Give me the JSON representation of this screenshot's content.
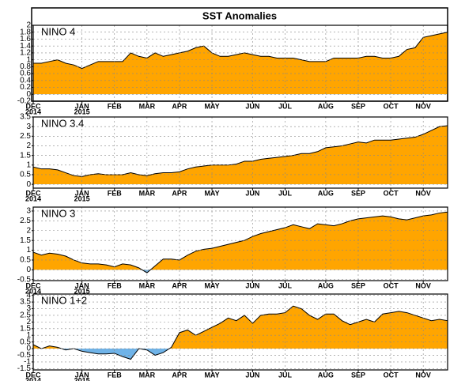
{
  "title": "SST Anomalies",
  "chart_data": [
    {
      "type": "area",
      "title": "NINO 4",
      "color": "#ffa500",
      "negative_color": "#6fb3e8",
      "grid": true,
      "categories": [
        "DEC",
        null,
        null,
        null,
        null,
        null,
        "JAN",
        null,
        null,
        null,
        "FEB",
        null,
        null,
        null,
        "MAR",
        null,
        null,
        null,
        "APR",
        null,
        null,
        null,
        "MAY",
        null,
        null,
        null,
        null,
        "JUN",
        null,
        null,
        null,
        "JUL",
        null,
        null,
        null,
        null,
        "AUG",
        null,
        null,
        null,
        "SEP",
        null,
        null,
        null,
        "OCT",
        null,
        null,
        null,
        "NOV",
        null,
        null,
        null
      ],
      "year_labels": [
        "2014",
        "2015"
      ],
      "values": [
        0.9,
        0.9,
        0.95,
        1.0,
        0.9,
        0.85,
        0.75,
        0.85,
        0.95,
        0.95,
        0.95,
        0.95,
        1.2,
        1.1,
        1.05,
        1.2,
        1.1,
        1.15,
        1.2,
        1.25,
        1.35,
        1.4,
        1.2,
        1.1,
        1.1,
        1.15,
        1.2,
        1.15,
        1.1,
        1.1,
        1.05,
        1.05,
        1.05,
        1.0,
        0.95,
        0.95,
        0.95,
        1.05,
        1.05,
        1.05,
        1.05,
        1.1,
        1.1,
        1.05,
        1.05,
        1.1,
        1.3,
        1.35,
        1.65,
        1.7,
        1.75,
        1.8
      ],
      "ylim": [
        -0.2,
        2
      ],
      "yticks": [
        -0.2,
        0,
        0.2,
        0.4,
        0.6,
        0.8,
        1,
        1.2,
        1.4,
        1.6,
        1.8,
        2
      ]
    },
    {
      "type": "area",
      "title": "NINO 3.4",
      "color": "#ffa500",
      "negative_color": "#6fb3e8",
      "grid": true,
      "categories": [
        "DEC",
        null,
        null,
        null,
        null,
        null,
        "JAN",
        null,
        null,
        null,
        "FEB",
        null,
        null,
        null,
        "MAR",
        null,
        null,
        null,
        "APR",
        null,
        null,
        null,
        "MAY",
        null,
        null,
        null,
        null,
        "JUN",
        null,
        null,
        null,
        "JUL",
        null,
        null,
        null,
        null,
        "AUG",
        null,
        null,
        null,
        "SEP",
        null,
        null,
        null,
        "OCT",
        null,
        null,
        null,
        "NOV",
        null,
        null,
        null
      ],
      "year_labels": [
        "2014",
        "2015"
      ],
      "values": [
        0.9,
        0.8,
        0.8,
        0.75,
        0.6,
        0.45,
        0.4,
        0.5,
        0.55,
        0.5,
        0.5,
        0.5,
        0.6,
        0.5,
        0.45,
        0.55,
        0.6,
        0.6,
        0.65,
        0.8,
        0.9,
        0.95,
        1.0,
        1.0,
        1.0,
        1.05,
        1.2,
        1.2,
        1.3,
        1.35,
        1.4,
        1.45,
        1.5,
        1.6,
        1.6,
        1.7,
        1.9,
        1.95,
        2.0,
        2.1,
        2.2,
        2.15,
        2.3,
        2.3,
        2.3,
        2.35,
        2.4,
        2.45,
        2.6,
        2.8,
        3.0,
        3.05
      ],
      "ylim": [
        -0.2,
        3.5
      ],
      "yticks": [
        0,
        0.5,
        1,
        1.5,
        2,
        2.5,
        3,
        3.5
      ]
    },
    {
      "type": "area",
      "title": "NINO 3",
      "color": "#ffa500",
      "negative_color": "#6fb3e8",
      "grid": true,
      "categories": [
        "DEC",
        null,
        null,
        null,
        null,
        null,
        "JAN",
        null,
        null,
        null,
        "FEB",
        null,
        null,
        null,
        "MAR",
        null,
        null,
        null,
        "APR",
        null,
        null,
        null,
        "MAY",
        null,
        null,
        null,
        null,
        "JUN",
        null,
        null,
        null,
        "JUL",
        null,
        null,
        null,
        null,
        "AUG",
        null,
        null,
        null,
        "SEP",
        null,
        null,
        null,
        "OCT",
        null,
        null,
        null,
        "NOV",
        null,
        null,
        null
      ],
      "year_labels": [
        "2014",
        "2015"
      ],
      "values": [
        0.9,
        0.75,
        0.85,
        0.8,
        0.7,
        0.5,
        0.35,
        0.3,
        0.3,
        0.25,
        0.15,
        0.3,
        0.25,
        0.1,
        -0.15,
        0.2,
        0.55,
        0.55,
        0.5,
        0.75,
        0.95,
        1.05,
        1.1,
        1.2,
        1.3,
        1.4,
        1.5,
        1.7,
        1.85,
        1.95,
        2.05,
        2.15,
        2.3,
        2.2,
        2.1,
        2.35,
        2.3,
        2.25,
        2.35,
        2.5,
        2.6,
        2.65,
        2.7,
        2.75,
        2.7,
        2.6,
        2.55,
        2.65,
        2.75,
        2.8,
        2.9,
        2.95
      ],
      "ylim": [
        -0.55,
        3.2
      ],
      "yticks": [
        -0.5,
        0,
        0.5,
        1,
        1.5,
        2,
        2.5,
        3
      ]
    },
    {
      "type": "area",
      "title": "NINO 1+2",
      "color": "#ffa500",
      "negative_color": "#6fb3e8",
      "grid": true,
      "categories": [
        "DEC",
        null,
        null,
        null,
        null,
        null,
        "JAN",
        null,
        null,
        null,
        "FEB",
        null,
        null,
        null,
        "MAR",
        null,
        null,
        null,
        "APR",
        null,
        null,
        null,
        "MAY",
        null,
        null,
        null,
        null,
        "JUN",
        null,
        null,
        null,
        "JUL",
        null,
        null,
        null,
        null,
        "AUG",
        null,
        null,
        null,
        "SEP",
        null,
        null,
        null,
        "OCT",
        null,
        null,
        null,
        "NOV",
        null,
        null,
        null
      ],
      "year_labels": [
        "2014",
        "2015"
      ],
      "values": [
        0.3,
        0,
        0.2,
        0.1,
        -0.1,
        0,
        -0.2,
        -0.3,
        -0.4,
        -0.4,
        -0.35,
        -0.6,
        -0.8,
        0,
        -0.1,
        -0.5,
        -0.3,
        0.1,
        1.2,
        1.4,
        1.0,
        1.3,
        1.6,
        1.9,
        2.3,
        2.1,
        2.5,
        1.9,
        2.5,
        2.6,
        2.6,
        2.7,
        3.2,
        3.0,
        2.5,
        2.2,
        2.6,
        2.6,
        2.1,
        1.8,
        2.0,
        2.2,
        2.0,
        2.6,
        2.7,
        2.8,
        2.7,
        2.5,
        2.3,
        2.1,
        2.2,
        2.1
      ],
      "ylim": [
        -1.6,
        4.1
      ],
      "yticks": [
        -1.5,
        -1,
        -0.5,
        0,
        0.5,
        1,
        1.5,
        2,
        2.5,
        3,
        3.5,
        4
      ]
    }
  ]
}
